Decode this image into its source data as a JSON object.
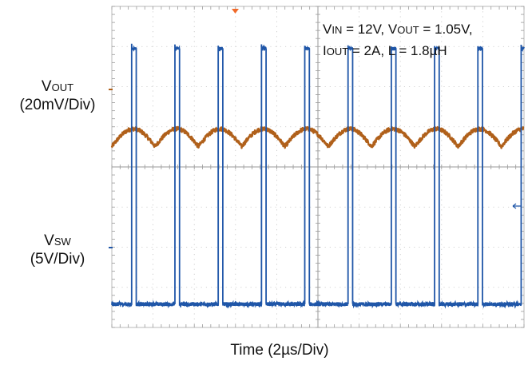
{
  "chart_data": {
    "type": "line",
    "title": "",
    "xlabel": "Time (2µs/Div)",
    "x_divisions": 10,
    "y_divisions": 8,
    "grid": true,
    "conditions": {
      "line1": {
        "vin_main": "V",
        "vin_sub": "IN",
        "vin_val": " = 12V, ",
        "vout_main": "V",
        "vout_sub": "OUT",
        "vout_val": " = 1.05V,"
      },
      "line2": {
        "iout_main": "I",
        "iout_sub": "OUT",
        "iout_val": " = 2A, L = 1.8µH"
      }
    },
    "series": [
      {
        "name_main": "V",
        "name_sub": "OUT",
        "scale": "(20mV/Div)",
        "kind": "ripple",
        "color": "#b0601a",
        "period_div": 1.05,
        "amplitude_div": 0.22,
        "center_div": 4.75
      },
      {
        "name_main": "V",
        "name_sub": "SW",
        "scale": "(5V/Div)",
        "kind": "pulse",
        "color": "#1f56a8",
        "period_div": 1.05,
        "duty": 0.105,
        "low_div": 0.58,
        "high_div": 6.95,
        "phase_div": 0.48
      }
    ]
  }
}
